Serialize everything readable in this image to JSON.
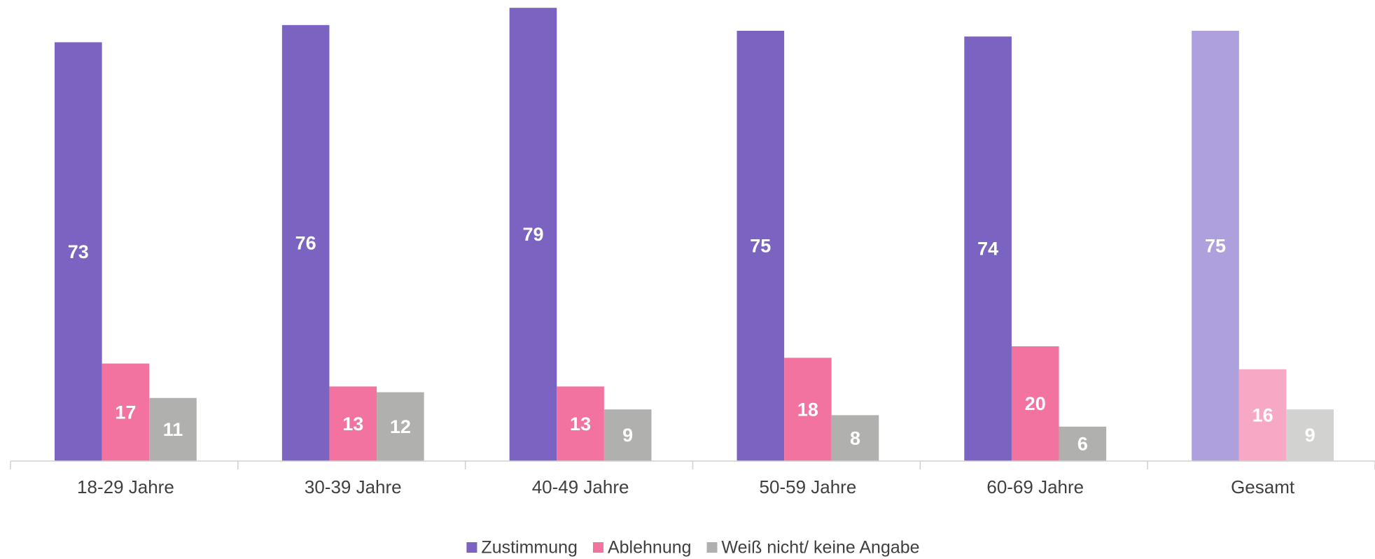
{
  "chart_data": {
    "type": "bar",
    "categories": [
      "18-29 Jahre",
      "30-39 Jahre",
      "40-49 Jahre",
      "50-59 Jahre",
      "60-69 Jahre",
      "Gesamt"
    ],
    "series": [
      {
        "name": "Zustimmung",
        "color": "#7b63c1",
        "point_colors": [
          "#7b63c1",
          "#7b63c1",
          "#7b63c1",
          "#7b63c1",
          "#7b63c1",
          "#ada0dc"
        ],
        "values": [
          73,
          76,
          79,
          75,
          74,
          75
        ]
      },
      {
        "name": "Ablehnung",
        "color": "#f272a0",
        "point_colors": [
          "#f272a0",
          "#f272a0",
          "#f272a0",
          "#f272a0",
          "#f272a0",
          "#f7a8c5"
        ],
        "values": [
          17,
          13,
          13,
          18,
          20,
          16
        ]
      },
      {
        "name": "Weiß nicht/ keine Angabe",
        "color": "#b0b0ae",
        "point_colors": [
          "#b0b0ae",
          "#b0b0ae",
          "#b0b0ae",
          "#b0b0ae",
          "#b0b0ae",
          "#d2d2d0"
        ],
        "values": [
          11,
          12,
          9,
          8,
          6,
          9
        ]
      }
    ],
    "ylim": [
      0,
      80
    ],
    "legend": "bottom"
  }
}
